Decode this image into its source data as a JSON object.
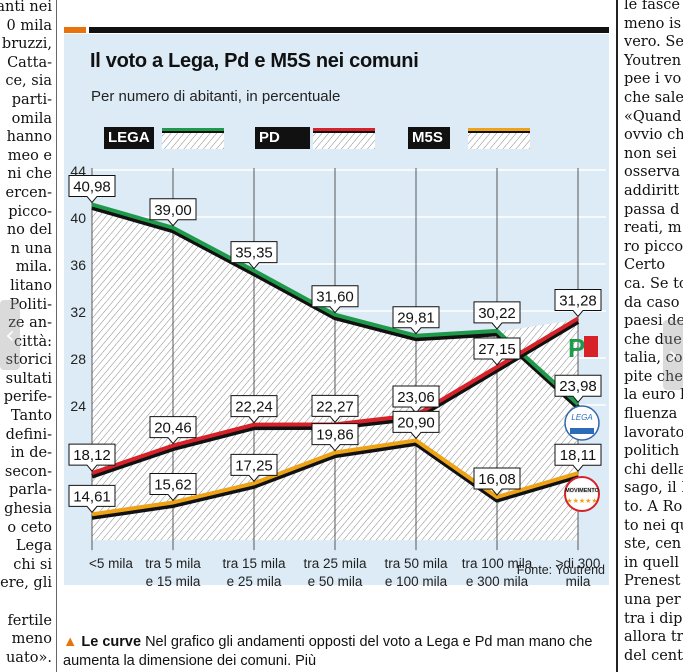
{
  "article": {
    "left_column_lines": [
      "anti nei",
      "0 mila",
      "bruzzi,",
      "Catta-",
      "ce, sia",
      "parti-",
      "omila",
      "hanno",
      "meo e",
      "ni che",
      "ercen-",
      "picco-",
      "no del",
      "n una",
      "mila.",
      "litano",
      "Politi-",
      "ze an-",
      "città:",
      "storici",
      "sultati",
      "perife-",
      "Tanto",
      "defini-",
      "in de-",
      "secon-",
      "parla-",
      "ghesia",
      "o ceto",
      "Lega",
      "chi si",
      "ere, gli",
      "",
      "fertile",
      "meno",
      "uato»."
    ],
    "right_column_lines": [
      "le fasce",
      "meno is",
      "vero. Se",
      "Youtren",
      "pee i vo",
      "che sale",
      "«Quand",
      "ovvio ch",
      "non sei",
      "osserva",
      "addiritt",
      "passa d",
      "reati, m",
      "ro picco",
      "  Certo",
      "ca. Se to",
      "da caso",
      "paesi de",
      "che due",
      "talia, co",
      "pite che",
      "la euro l",
      "fluenza",
      "lavorato",
      "politich",
      "chi della",
      "sago, il F",
      "to. A Ro",
      "to nei qu",
      "ste, cen",
      "in quell",
      "Prenest",
      "una per",
      "tra i dip",
      "allora tr",
      "del cent"
    ],
    "nav": {
      "prev_icon": "chevron-left-icon",
      "next_icon": "chevron-right-icon",
      "prev_glyph": "‹",
      "next_glyph": "›"
    }
  },
  "infographic": {
    "accent_color": "#e8720c",
    "panel_color": "#dcebf5",
    "title": "Il voto a Lega, Pd e M5S nei comuni",
    "subtitle": "Per numero di abitanti, in percentuale",
    "source": "Fonte: Youtrend",
    "party_logos": [
      {
        "name": "pd-logo",
        "text": "PD"
      },
      {
        "name": "lega-salvini-logo",
        "text": "LEGA"
      },
      {
        "name": "m5s-logo",
        "text": "MOVIMENTO"
      }
    ]
  },
  "chart_data": {
    "type": "line",
    "title": "Il voto a Lega, Pd e M5S nei comuni",
    "subtitle": "Per numero di abitanti, in percentuale",
    "xlabel": "",
    "ylabel": "",
    "categories": [
      [
        "<5 mila"
      ],
      [
        "tra 5 mila",
        "e 15 mila"
      ],
      [
        "tra 15 mila",
        "e 25 mila"
      ],
      [
        "tra 25 mila",
        "e 50 mila"
      ],
      [
        "tra 50 mila",
        "e 100 mila"
      ],
      [
        "tra 100 mila",
        "e 300 mila"
      ],
      [
        ">di 300",
        "mila"
      ]
    ],
    "yticks": [
      "44",
      "40",
      "36",
      "32",
      "28",
      "24"
    ],
    "ytick_values": [
      44,
      40,
      36,
      32,
      28,
      24
    ],
    "ylim": [
      12.5,
      44
    ],
    "grid": true,
    "legend_position": "top",
    "series": [
      {
        "name": "LEGA",
        "color": "#1f9a4a",
        "values": [
          40.98,
          39.0,
          35.35,
          31.6,
          29.81,
          30.22,
          23.98
        ],
        "labels": [
          "40,98",
          "39,00",
          "35,35",
          "31,60",
          "29,81",
          "30,22",
          "23,98"
        ]
      },
      {
        "name": "PD",
        "color": "#d8222a",
        "values": [
          18.12,
          20.46,
          22.24,
          22.27,
          23.06,
          27.15,
          31.28
        ],
        "labels": [
          "18,12",
          "20,46",
          "22,24",
          "22,27",
          "23,06",
          "27,15",
          "31,28"
        ]
      },
      {
        "name": "M5S",
        "color": "#eea317",
        "values": [
          14.61,
          15.62,
          17.25,
          19.86,
          20.9,
          16.08,
          18.11
        ],
        "labels": [
          "14,61",
          "15,62",
          "17,25",
          "19,86",
          "20,90",
          "16,08",
          "18,11"
        ]
      }
    ]
  },
  "caption": {
    "icon": "▲",
    "lead": "Le curve",
    "text": " Nel grafico gli andamenti opposti del voto a Lega e Pd man mano che aumenta la dimensione dei comuni. Più"
  }
}
